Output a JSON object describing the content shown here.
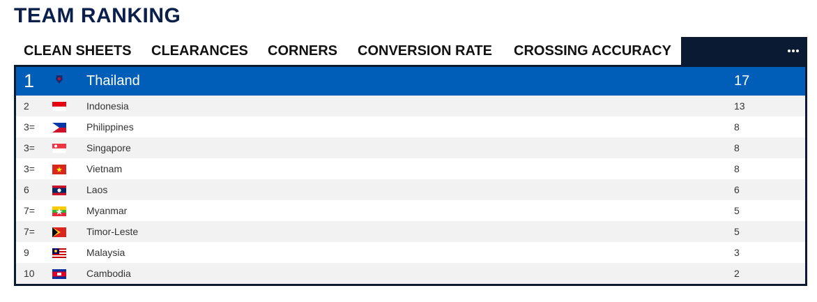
{
  "header": {
    "title": "TEAM RANKING"
  },
  "tabs": [
    "CLEAN SHEETS",
    "CLEARANCES",
    "CORNERS",
    "CONVERSION RATE",
    "CROSSING ACCURACY"
  ],
  "table": {
    "rows": [
      [
        "1",
        "Thailand",
        17
      ],
      [
        "2",
        "Indonesia",
        13
      ],
      [
        "3=",
        "Philippines",
        8
      ],
      [
        "3=",
        "Singapore",
        8
      ],
      [
        "3=",
        "Vietnam",
        8
      ],
      [
        "6",
        "Laos",
        6
      ],
      [
        "7=",
        "Myanmar",
        5
      ],
      [
        "7=",
        "Timor-Leste",
        5
      ],
      [
        "9",
        "Malaysia",
        3
      ],
      [
        "10",
        "Cambodia",
        2
      ]
    ]
  }
}
